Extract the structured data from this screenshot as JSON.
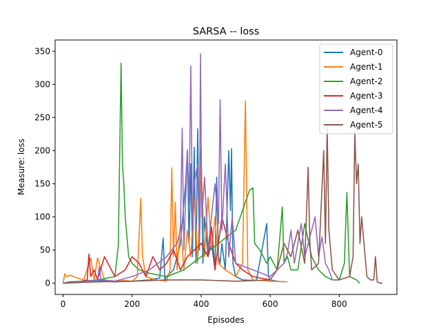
{
  "chart_data": {
    "type": "line",
    "title": "SARSA -- loss",
    "xlabel": "Episodes",
    "ylabel": "Measure: loss",
    "xlim": [
      -23,
      967
    ],
    "ylim": [
      -17,
      367
    ],
    "xticks": [
      0,
      200,
      400,
      600,
      800
    ],
    "yticks": [
      0,
      50,
      100,
      150,
      200,
      250,
      300,
      350
    ],
    "xtick_labels": [
      "0",
      "200",
      "400",
      "600",
      "800"
    ],
    "ytick_labels": [
      "0",
      "50",
      "100",
      "150",
      "200",
      "250",
      "300",
      "350"
    ],
    "grid": false,
    "legend_position": "top-right",
    "series": [
      {
        "name": "Agent-0",
        "color": "#1f77b4",
        "x": [
          0,
          20,
          60,
          100,
          150,
          200,
          250,
          280,
          290,
          295,
          300,
          320,
          340,
          355,
          360,
          365,
          370,
          375,
          380,
          385,
          390,
          395,
          400,
          405,
          410,
          420,
          430,
          440,
          445,
          450,
          455,
          460,
          470,
          480,
          485,
          488,
          492,
          500,
          520,
          560,
          590,
          595,
          600,
          620,
          640
        ],
        "values": [
          0,
          2,
          3,
          4,
          2,
          3,
          5,
          8,
          68,
          5,
          10,
          20,
          60,
          150,
          201,
          60,
          180,
          40,
          205,
          30,
          233,
          50,
          203,
          30,
          100,
          40,
          60,
          20,
          160,
          40,
          30,
          60,
          20,
          200,
          110,
          203,
          30,
          10,
          5,
          4,
          90,
          10,
          5,
          3,
          2
        ]
      },
      {
        "name": "Agent-1",
        "color": "#ff7f0e",
        "x": [
          0,
          5,
          10,
          20,
          40,
          60,
          80,
          90,
          100,
          120,
          150,
          180,
          200,
          215,
          225,
          230,
          240,
          270,
          300,
          310,
          315,
          320,
          325,
          330,
          340,
          350,
          360,
          370,
          380,
          390,
          400,
          410,
          420,
          430,
          440,
          450,
          470,
          500,
          520,
          528,
          535,
          550,
          600,
          650
        ],
        "values": [
          0,
          14,
          10,
          12,
          8,
          5,
          38,
          5,
          38,
          5,
          3,
          4,
          3,
          10,
          128,
          40,
          10,
          5,
          3,
          20,
          174,
          40,
          122,
          20,
          90,
          20,
          80,
          40,
          130,
          30,
          180,
          40,
          130,
          50,
          100,
          30,
          20,
          10,
          30,
          275,
          20,
          5,
          3,
          2
        ]
      },
      {
        "name": "Agent-2",
        "color": "#2ca02c",
        "x": [
          0,
          50,
          100,
          150,
          160,
          168,
          172,
          176,
          180,
          190,
          200,
          220,
          250,
          300,
          350,
          400,
          450,
          500,
          540,
          550,
          555,
          570,
          590,
          600,
          620,
          635,
          640,
          650,
          660,
          680,
          700,
          720,
          740,
          760,
          780,
          800,
          815,
          822,
          830,
          850,
          855,
          860
        ],
        "values": [
          0,
          3,
          5,
          10,
          57,
          332,
          180,
          150,
          100,
          40,
          30,
          20,
          15,
          10,
          20,
          40,
          60,
          80,
          140,
          144,
          60,
          50,
          30,
          40,
          20,
          115,
          30,
          40,
          20,
          20,
          90,
          40,
          20,
          10,
          5,
          5,
          30,
          137,
          10,
          5,
          2,
          0
        ]
      },
      {
        "name": "Agent-3",
        "color": "#d62728",
        "x": [
          0,
          50,
          70,
          75,
          80,
          90,
          100,
          120,
          150,
          180,
          200,
          220,
          240,
          260,
          280,
          300,
          320,
          340,
          360,
          380,
          400,
          420,
          430,
          440,
          460,
          480,
          500,
          520,
          550,
          600
        ],
        "values": [
          0,
          2,
          5,
          44,
          10,
          20,
          5,
          40,
          10,
          20,
          40,
          30,
          10,
          40,
          20,
          30,
          50,
          20,
          40,
          50,
          60,
          40,
          85,
          20,
          100,
          60,
          30,
          20,
          10,
          5
        ]
      },
      {
        "name": "Agent-4",
        "color": "#9467bd",
        "x": [
          0,
          50,
          100,
          105,
          110,
          150,
          200,
          250,
          300,
          330,
          340,
          345,
          350,
          360,
          365,
          370,
          375,
          380,
          390,
          395,
          398,
          402,
          410,
          420,
          440,
          450,
          455,
          460,
          470,
          480,
          490,
          500,
          550,
          600,
          640,
          650,
          660,
          670,
          680,
          690,
          700,
          720,
          730,
          740,
          750,
          760,
          770,
          780
        ],
        "values": [
          0,
          2,
          5,
          25,
          5,
          3,
          10,
          20,
          40,
          60,
          80,
          234,
          50,
          200,
          120,
          328,
          80,
          150,
          180,
          60,
          346,
          100,
          160,
          50,
          150,
          90,
          277,
          80,
          180,
          40,
          100,
          30,
          20,
          10,
          30,
          45,
          80,
          30,
          60,
          90,
          40,
          80,
          100,
          40,
          70,
          30,
          20,
          5
        ]
      },
      {
        "name": "Agent-5",
        "color": "#8c564b",
        "x": [
          0,
          100,
          200,
          300,
          400,
          500,
          600,
          620,
          640,
          660,
          680,
          700,
          710,
          715,
          720,
          740,
          755,
          760,
          765,
          770,
          780,
          800,
          830,
          840,
          845,
          850,
          855,
          860,
          865,
          870,
          880,
          890,
          900,
          905,
          910,
          920,
          925
        ],
        "values": [
          0,
          2,
          3,
          5,
          5,
          3,
          5,
          20,
          60,
          40,
          80,
          30,
          175,
          60,
          20,
          30,
          200,
          60,
          236,
          80,
          20,
          5,
          10,
          40,
          228,
          150,
          180,
          60,
          100,
          70,
          10,
          5,
          5,
          40,
          2,
          0,
          0
        ]
      }
    ]
  }
}
